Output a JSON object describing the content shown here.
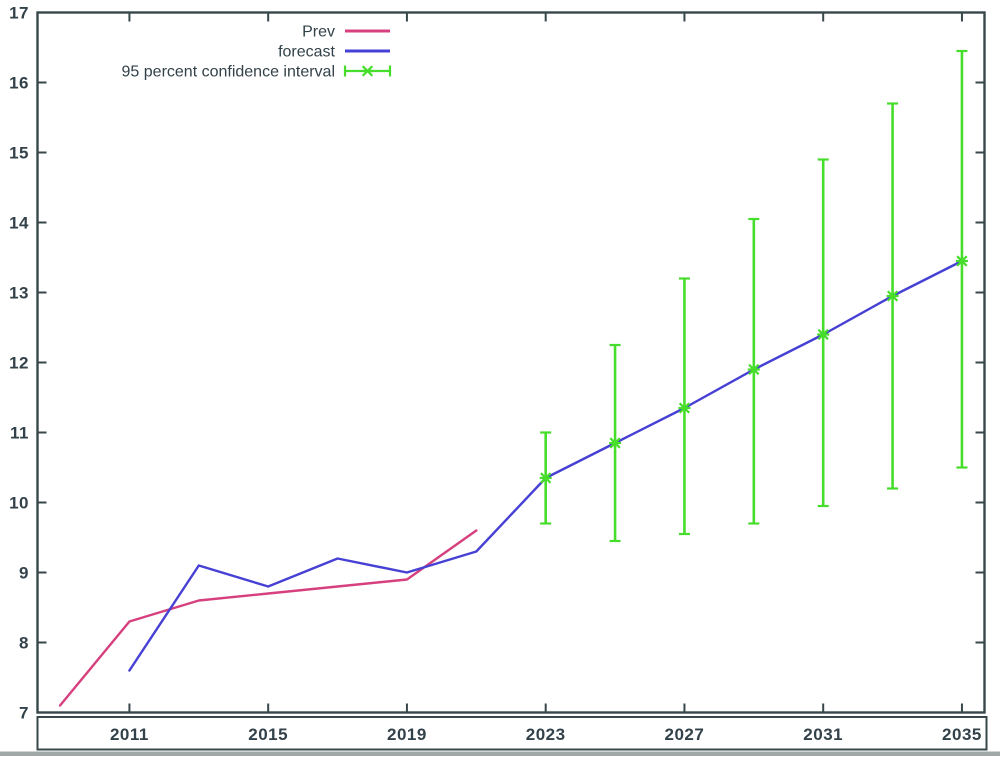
{
  "chart_data": {
    "type": "line",
    "title": "",
    "xlabel": "",
    "ylabel": "",
    "grid": false,
    "legend_position": "top-inside-left",
    "xlim": [
      2008.35,
      2035.65
    ],
    "ylim": [
      7,
      17
    ],
    "x_tick_labels": [
      "2011",
      "2015",
      "2019",
      "2023",
      "2027",
      "2031",
      "2035"
    ],
    "x_tick_values": [
      2011,
      2015,
      2019,
      2023,
      2027,
      2031,
      2035
    ],
    "y_tick_labels": [
      "7",
      "8",
      "9",
      "10",
      "11",
      "12",
      "13",
      "14",
      "15",
      "16",
      "17"
    ],
    "y_tick_values": [
      7,
      8,
      9,
      10,
      11,
      12,
      13,
      14,
      15,
      16,
      17
    ],
    "legend": [
      {
        "label": "Prev",
        "style": "line",
        "color": "#d6407e"
      },
      {
        "label": "forecast",
        "style": "line",
        "color": "#4640d4"
      },
      {
        "label": "95 percent confidence interval",
        "style": "errorbar",
        "color": "#46dd2b"
      }
    ],
    "series": [
      {
        "name": "Prev",
        "type": "line",
        "color": "#d6407e",
        "x": [
          2009,
          2011,
          2013,
          2015,
          2017,
          2019,
          2021
        ],
        "y": [
          7.1,
          8.3,
          8.6,
          8.7,
          8.8,
          8.9,
          9.6
        ]
      },
      {
        "name": "forecast",
        "type": "line",
        "color": "#4640d4",
        "x": [
          2011,
          2013,
          2015,
          2017,
          2019,
          2021,
          2023,
          2025,
          2027,
          2029,
          2031,
          2033,
          2035
        ],
        "y": [
          7.6,
          9.1,
          8.8,
          9.2,
          9.0,
          9.3,
          10.35,
          10.85,
          11.35,
          11.9,
          12.4,
          12.95,
          13.45
        ]
      },
      {
        "name": "95 percent confidence interval",
        "type": "errorbar",
        "color": "#46dd2b",
        "points": [
          {
            "x": 2023,
            "y": 10.35,
            "lo": 9.7,
            "hi": 11.0
          },
          {
            "x": 2025,
            "y": 10.85,
            "lo": 9.45,
            "hi": 12.25
          },
          {
            "x": 2027,
            "y": 11.35,
            "lo": 9.55,
            "hi": 13.2
          },
          {
            "x": 2029,
            "y": 11.9,
            "lo": 9.7,
            "hi": 14.05
          },
          {
            "x": 2031,
            "y": 12.4,
            "lo": 9.95,
            "hi": 14.9
          },
          {
            "x": 2033,
            "y": 12.95,
            "lo": 10.2,
            "hi": 15.7
          },
          {
            "x": 2035,
            "y": 13.45,
            "lo": 10.5,
            "hi": 16.45
          }
        ]
      }
    ],
    "colors": {
      "axis": "#37474a",
      "text": "#33424a",
      "background": "#ffffff",
      "bottom_scan_band": "#8f9898"
    }
  }
}
